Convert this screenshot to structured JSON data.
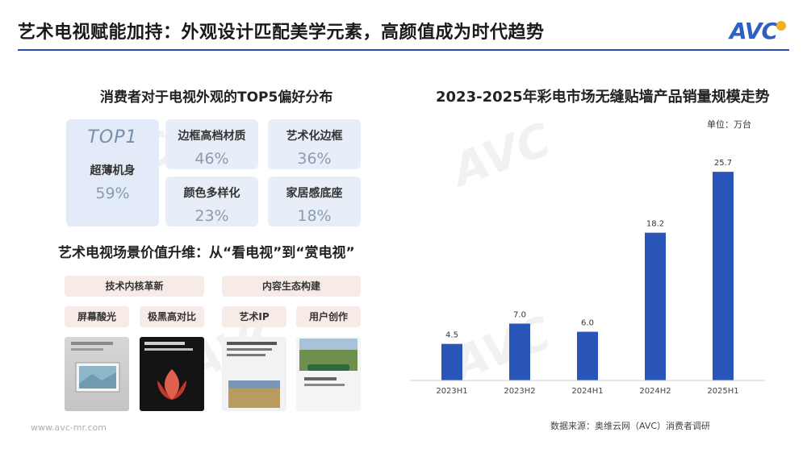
{
  "header": {
    "title": "艺术电视赋能加持：外观设计匹配美学元素，高颜值成为时代趋势",
    "logo_text": "AVC",
    "accent_color": "#2c4db8"
  },
  "preferences": {
    "title": "消费者对于电视外观的TOP5偏好分布",
    "top": {
      "rank": "TOP1",
      "label": "超薄机身",
      "value": "59%"
    },
    "items": [
      {
        "label": "边框高档材质",
        "value": "46%"
      },
      {
        "label": "艺术化边框",
        "value": "36%"
      },
      {
        "label": "颜色多样化",
        "value": "23%"
      },
      {
        "label": "家居感底座",
        "value": "18%"
      }
    ]
  },
  "scene": {
    "title": "艺术电视场景价值升维：从“看电视”到“赏电视”",
    "groups": [
      "技术内核革新",
      "内容生态构建"
    ],
    "features": [
      "屏幕酸光",
      "极黑高对比",
      "艺术IP",
      "用户创作"
    ]
  },
  "chart_data": {
    "type": "bar",
    "title": "2023-2025年彩电市场无缝贴墙产品销量规模走势",
    "unit_label": "单位：万台",
    "categories": [
      "2023H1",
      "2023H2",
      "2024H1",
      "2024H2",
      "2025H1"
    ],
    "values": [
      4.5,
      7.0,
      6.0,
      18.2,
      25.7
    ],
    "bar_color": "#2a55b9",
    "ylim": [
      0,
      28
    ],
    "grid": false
  },
  "footer": {
    "source": "数据来源：奥维云网（AVC）消费者调研",
    "website": "www.avc-mr.com"
  }
}
